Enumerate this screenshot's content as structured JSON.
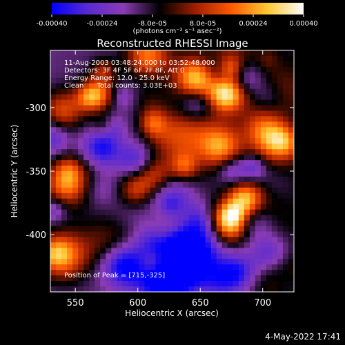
{
  "chart_data": {
    "type": "heatmap",
    "title": "Reconstructed RHESSI Image",
    "xlabel": "Heliocentric X (arcsec)",
    "ylabel": "Heliocentric Y (arcsec)",
    "xlim": [
      530,
      725
    ],
    "ylim": [
      -445,
      -255
    ],
    "x_ticks": [
      "550",
      "600",
      "650",
      "700"
    ],
    "x_tick_values": [
      550,
      600,
      650,
      700
    ],
    "y_ticks": [
      "-300",
      "-350",
      "-400"
    ],
    "y_tick_values": [
      -300,
      -350,
      -400
    ],
    "colorbar": {
      "range": [
        -0.0004,
        0.0004
      ],
      "tick_labels": [
        "-0.00040",
        "-0.00024",
        "-8.0e-05",
        "8.0e-05",
        "0.00024",
        "0.00040"
      ],
      "units_label": "(photons cm⁻² s⁻¹ asec⁻²)",
      "colors": [
        "#0000ff",
        "#5a2ad2",
        "#8a3cb4",
        "#000000",
        "#a01e00",
        "#ff5a00",
        "#ffc832",
        "#ffffff"
      ]
    },
    "annotations": {
      "time_range": "11-Aug-2003 03:48:24.000 to 03:52:48.000",
      "detectors": "Detectors: 3F 4F 5F 6F 7F 8F, Att 0",
      "energy": "Energy Range: 12.0 - 25.0 keV",
      "clean": "Clean      Total counts: 3.03E+03",
      "peak": "Position of Peak = [715,-325]"
    },
    "peak": [
      715,
      -325
    ]
  },
  "timestamp": "4-May-2022 17:41"
}
